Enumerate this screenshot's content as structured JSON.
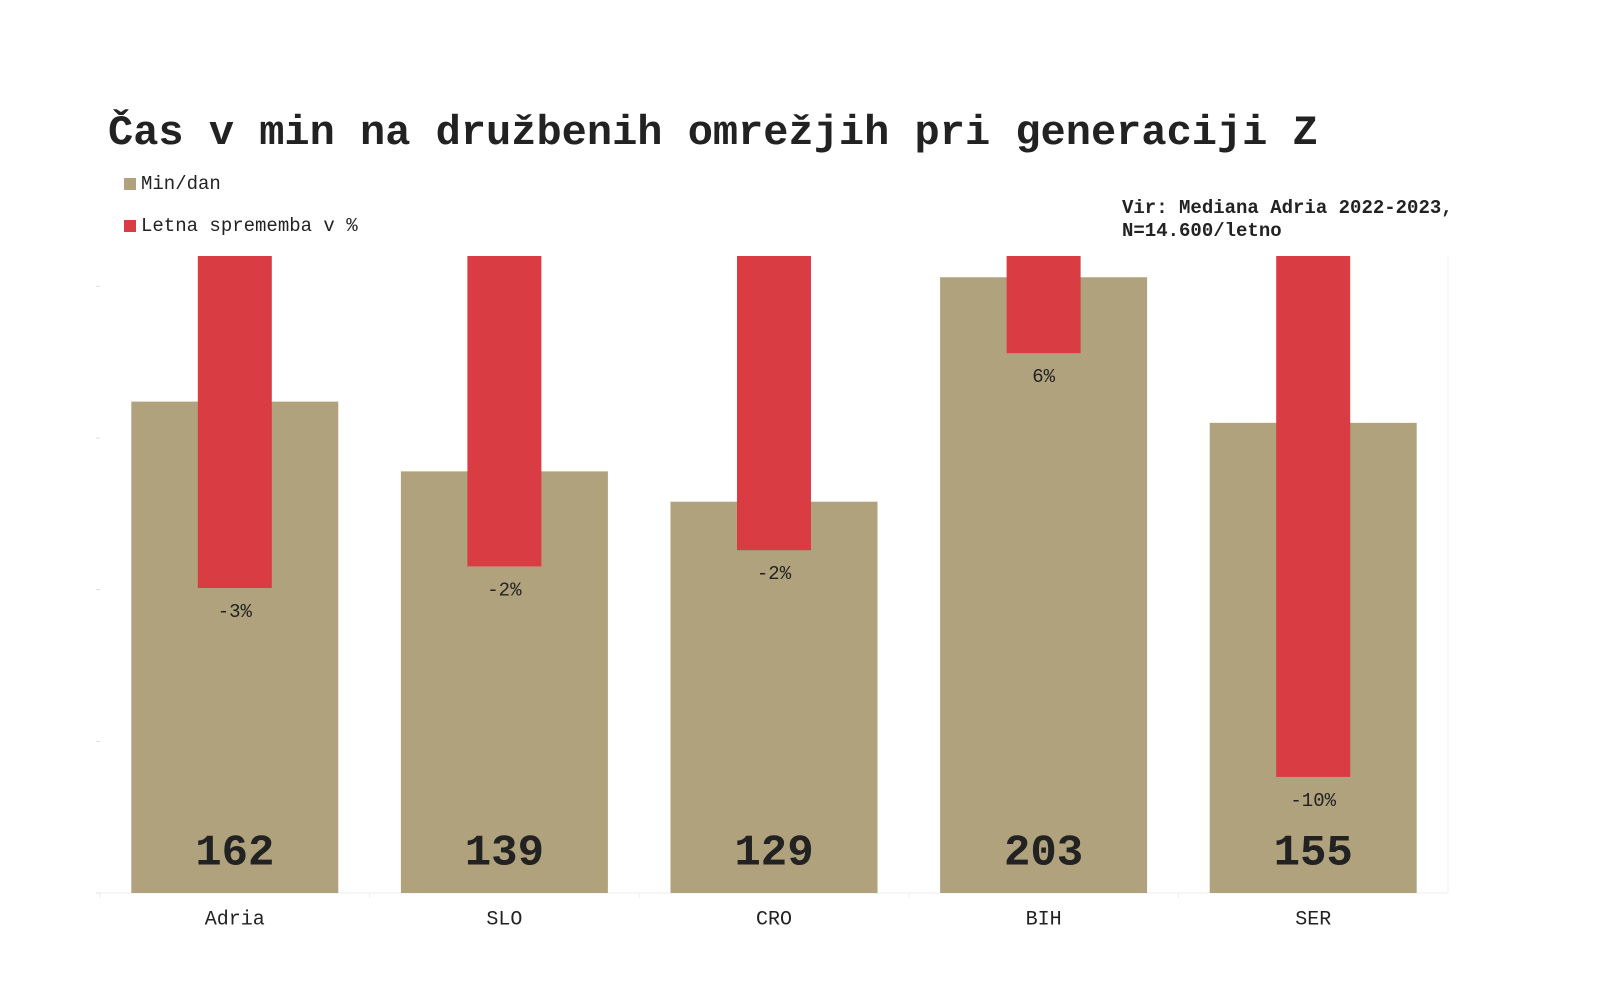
{
  "chart_data": {
    "type": "bar",
    "title": "Čas v min na družbenih omrežjih pri generaciji Z",
    "annotation": [
      "Vir: Mediana Adria 2022-2023,",
      "N=14.600/letno"
    ],
    "categories": [
      "Adria",
      "SLO",
      "CRO",
      "BIH",
      "SER"
    ],
    "series": [
      {
        "name": "Min/dan",
        "color": "#b0a27d",
        "values": [
          162,
          139,
          129,
          203,
          155
        ]
      },
      {
        "name": "Letna sprememba v %",
        "color": "#d93d43",
        "axis": "y2",
        "values": [
          -3,
          -2.2,
          -1.6,
          5.7,
          -10
        ],
        "value_labels": [
          "-3%",
          "-2%",
          "-2%",
          "6%",
          "-10%"
        ]
      }
    ],
    "ylim": [
      0,
      210
    ],
    "yticks": [
      0,
      50,
      100,
      150,
      200
    ],
    "y2lim": [
      -14.3,
      9.3
    ],
    "legend": "top-left"
  }
}
